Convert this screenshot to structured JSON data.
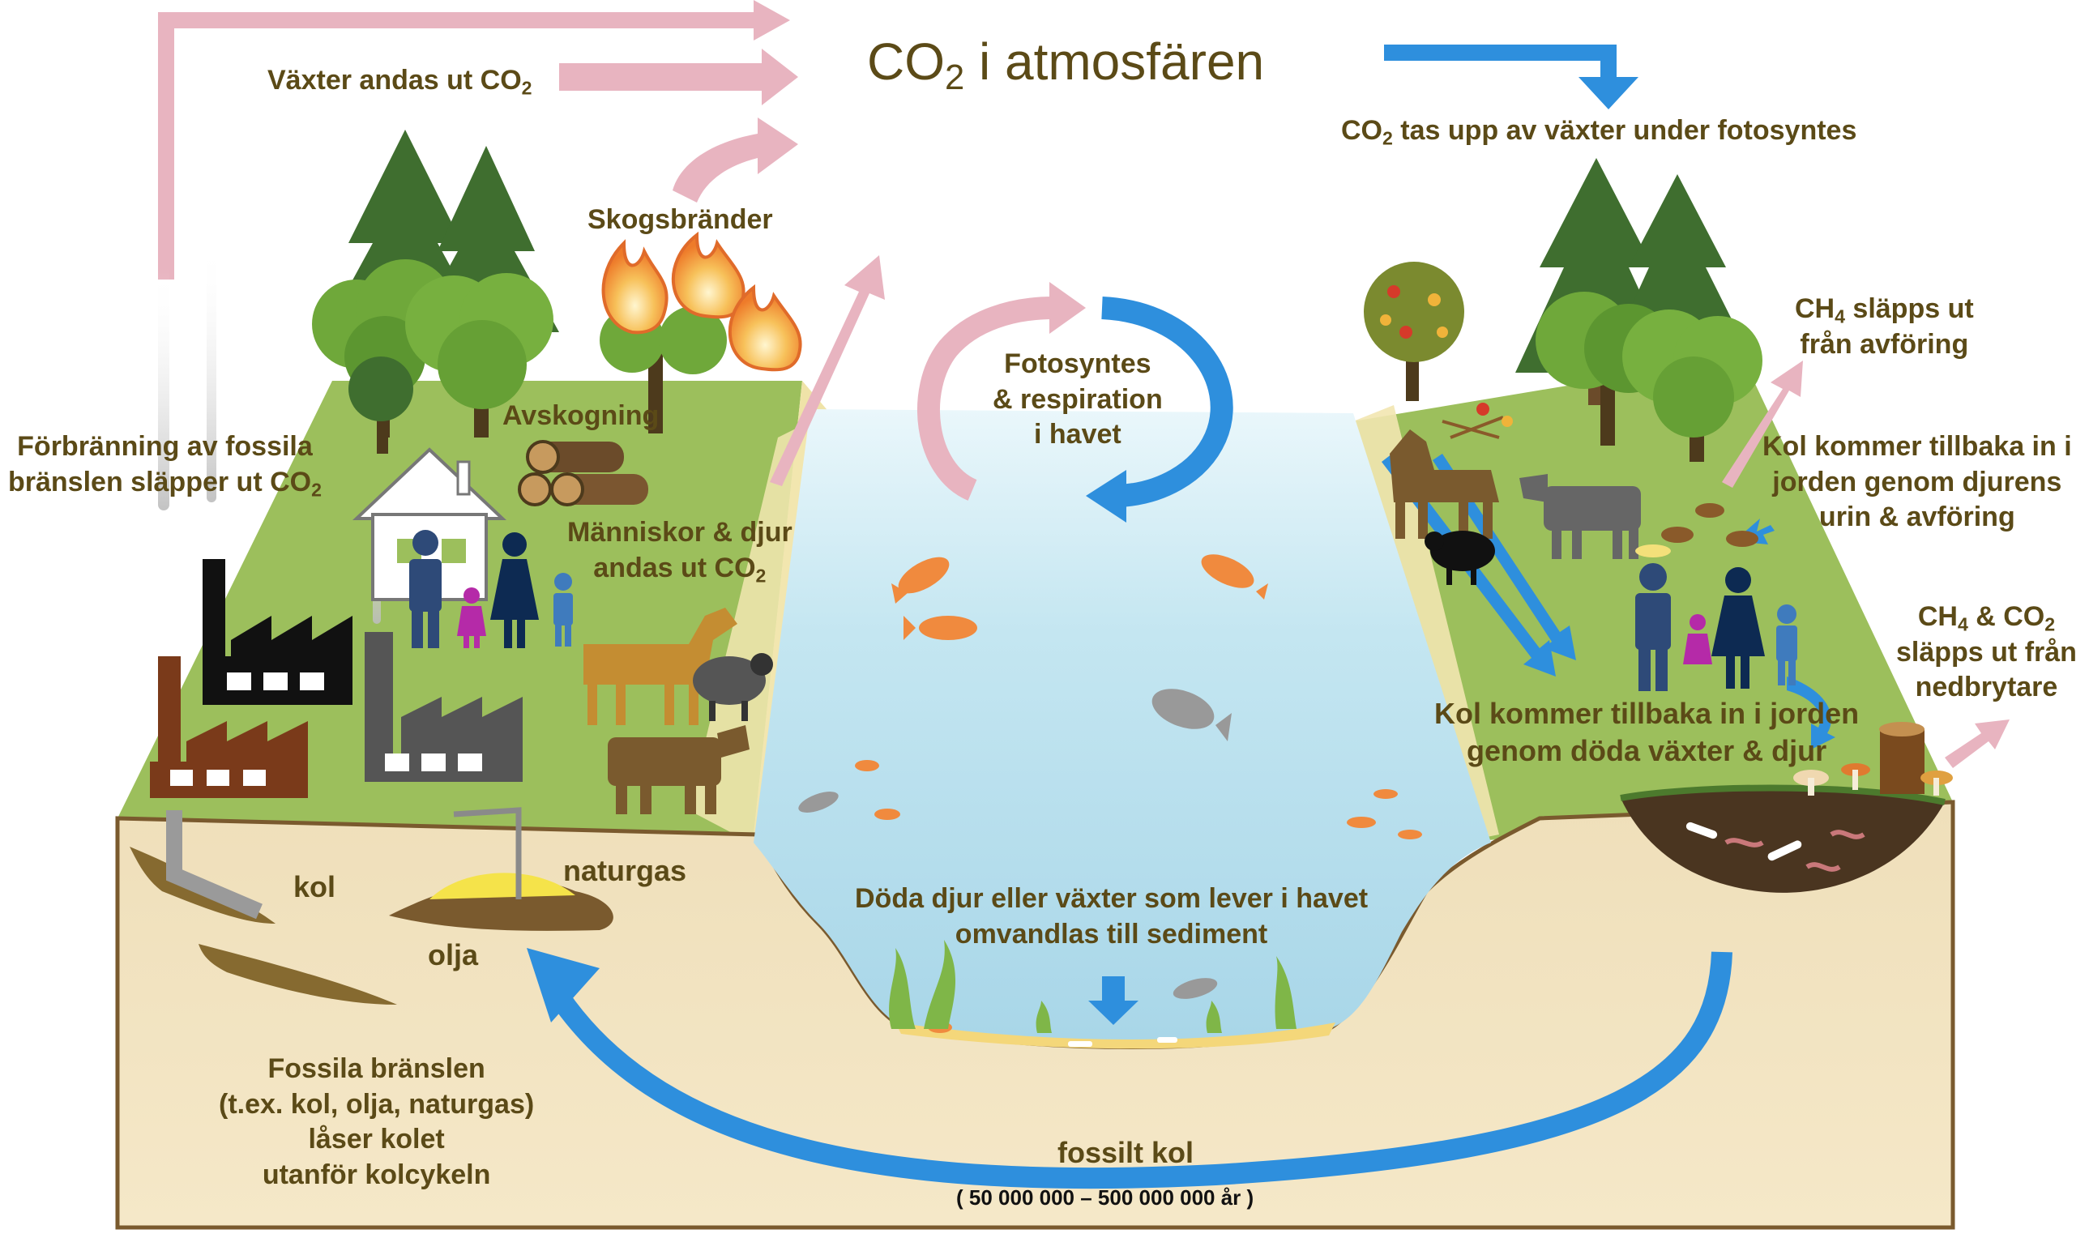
{
  "title": {
    "prefix": "CO",
    "sub": "2",
    "suffix": " i atmosfären"
  },
  "labels": {
    "plants_exhale": {
      "prefix": "Växter andas ut CO",
      "sub": "2"
    },
    "uptake": {
      "prefix": "CO",
      "sub": "2",
      "suffix": " tas upp av växter under fotosyntes"
    },
    "forest_fires": "Skogsbränder",
    "deforestation": "Avskogning",
    "combustion": {
      "line1": "Förbränning av fossila",
      "line2_prefix": "bränslen släpper ut CO",
      "sub": "2"
    },
    "humans_animals": {
      "line1": "Människor & djur",
      "line2_prefix": "andas ut CO",
      "sub": "2"
    },
    "ocean_cycle": {
      "line1": "Fotosyntes",
      "line2": "& respiration",
      "line3": "i havet"
    },
    "ch4_dung": {
      "prefix": "CH",
      "sub": "4",
      "line1_suffix": " släpps ut",
      "line2": "från avföring"
    },
    "carbon_urine": {
      "line1": "Kol kommer tillbaka in i",
      "line2": "jorden genom djurens",
      "line3": "urin & avföring"
    },
    "decomposers": {
      "p1": "CH",
      "sub1": "4",
      "p2": " & CO",
      "sub2": "2",
      "line2": "släpps ut från",
      "line3": "nedbrytare"
    },
    "dead_organisms": {
      "line1": "Kol kommer tillbaka in i jorden",
      "line2": "genom döda växter & djur"
    },
    "coal": "kol",
    "natural_gas": "naturgas",
    "oil": "olja",
    "sediment": {
      "line1": "Döda djur eller växter som lever i havet",
      "line2": "omvandlas till sediment"
    },
    "fossil_fuels": {
      "line1": "Fossila bränslen",
      "line2": "(t.ex. kol, olja, naturgas)",
      "line3": "låser kolet",
      "line4": "utanför kolcykeln"
    },
    "fossil_carbon": "fossilt kol",
    "time_span": "( 50 000 000 – 500 000 000 år )"
  },
  "colors": {
    "text": "#5b4a17",
    "emission_arrow": "#e8b4c0",
    "uptake_arrow": "#2e8fdd",
    "grass": "#9cbf5c",
    "soil": "#f0e1bd",
    "water": "#b9e0ee",
    "tree_dark": "#3f6e2f",
    "tree_light": "#6fa83a",
    "fire": "#f6a03a",
    "horse": "#b8862e",
    "cow": "#7a5a2e"
  }
}
